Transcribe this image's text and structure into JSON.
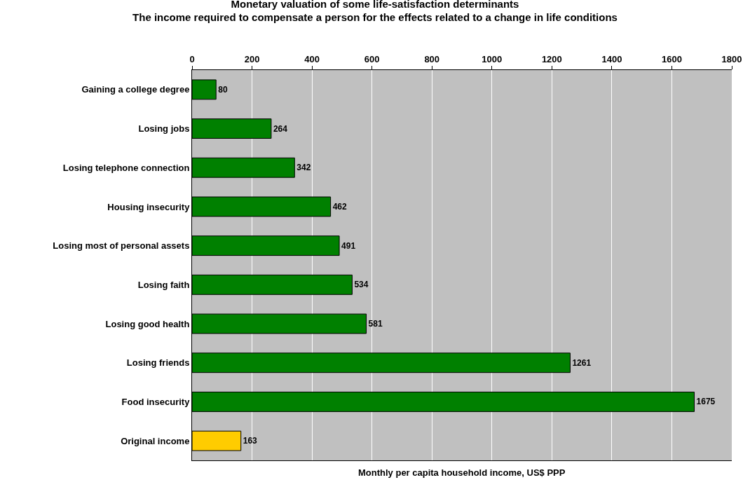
{
  "chart_data": {
    "type": "bar",
    "orientation": "horizontal",
    "title": "Monetary valuation of some life-satisfaction determinants",
    "subtitle": "The income required to compensate a person for the effects related to a change in life conditions",
    "xlabel": "Monthly per capita household income, US$ PPP",
    "categories": [
      "Gaining a college degree",
      "Losing jobs",
      "Losing telephone connection",
      "Housing insecurity",
      "Losing most of personal assets",
      "Losing faith",
      "Losing good health",
      "Losing friends",
      "Food insecurity",
      "Original income"
    ],
    "values": [
      80,
      264,
      342,
      462,
      491,
      534,
      581,
      1261,
      1675,
      163
    ],
    "colors": [
      "#008000",
      "#008000",
      "#008000",
      "#008000",
      "#008000",
      "#008000",
      "#008000",
      "#008000",
      "#008000",
      "#ffcc00"
    ],
    "xlim": [
      0,
      1800
    ],
    "xticks": [
      0,
      200,
      400,
      600,
      800,
      1000,
      1200,
      1400,
      1600,
      1800
    ],
    "grid": "x",
    "data_labels": true,
    "legend": false
  }
}
